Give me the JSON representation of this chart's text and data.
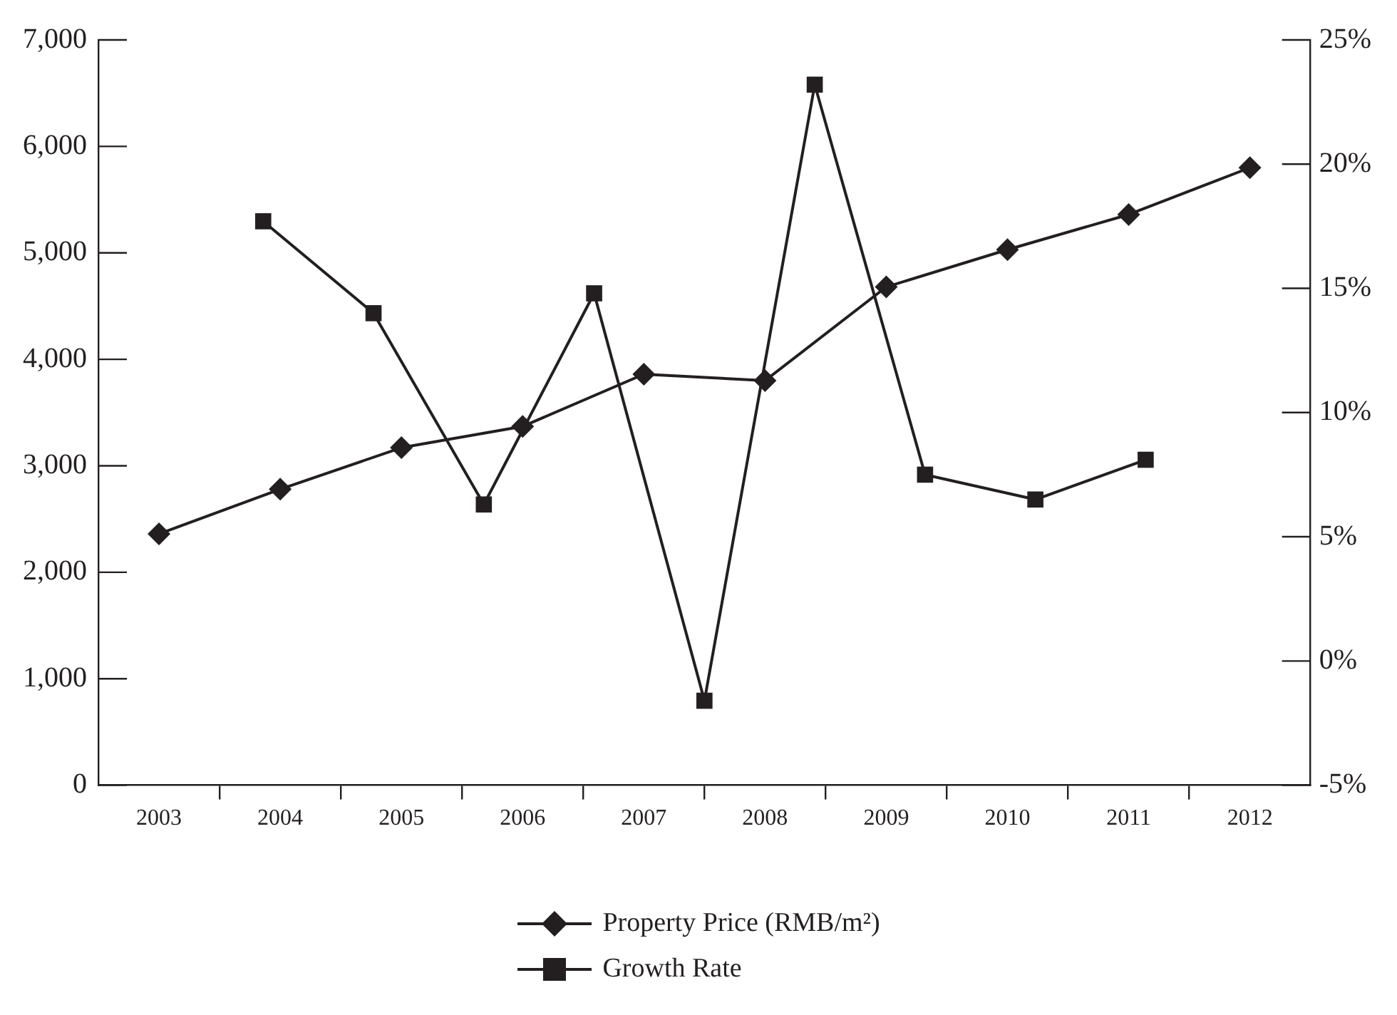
{
  "chart_data": {
    "type": "line",
    "x": [
      2003,
      2004,
      2005,
      2006,
      2007,
      2008,
      2009,
      2010,
      2011,
      2012
    ],
    "xlim": [
      2002.5,
      2012.5
    ],
    "xticks": [
      2003,
      2004,
      2005,
      2006,
      2007,
      2008,
      2009,
      2010,
      2011,
      2012,
      {
        "value": 2003.5,
        "label": null
      },
      {
        "value": 2004.5,
        "label": null
      },
      {
        "value": 2005.5,
        "label": null
      },
      {
        "value": 2006.5,
        "label": null
      },
      {
        "value": 2007.5,
        "label": null
      },
      {
        "value": 2008.5,
        "label": null
      },
      {
        "value": 2009.5,
        "label": null
      },
      {
        "value": 2010.5,
        "label": null
      },
      {
        "value": 2011.5,
        "label": null
      }
    ],
    "ylim": [
      0,
      7000
    ],
    "yticks": [
      {
        "value": 0,
        "label": "0"
      },
      {
        "value": 1000,
        "label": "1,000"
      },
      {
        "value": 2000,
        "label": "2,000"
      },
      {
        "value": 3000,
        "label": "3,000"
      },
      {
        "value": 4000,
        "label": "4,000"
      },
      {
        "value": 5000,
        "label": "5,000"
      },
      {
        "value": 6000,
        "label": "6,000"
      },
      {
        "value": 7000,
        "label": "7,000"
      }
    ],
    "y2lim": [
      -5,
      25
    ],
    "y2ticks": [
      {
        "value": -5,
        "label": "-5%"
      },
      {
        "value": 0,
        "label": "0%"
      },
      {
        "value": 5,
        "label": "5%"
      },
      {
        "value": 10,
        "label": "10%"
      },
      {
        "value": 15,
        "label": "15%"
      },
      {
        "value": 20,
        "label": "20%"
      },
      {
        "value": 25,
        "label": "25%"
      }
    ],
    "legend": "bottom",
    "line_style": "solid",
    "series": [
      {
        "name": "Property Price (RMB/m²)",
        "color": "#231f20",
        "marker": "diamond",
        "values": [
          2360,
          2780,
          3170,
          3370,
          3860,
          3800,
          4680,
          5030,
          5360,
          5800
        ]
      },
      {
        "name": "Growth Rate",
        "color": "#231f20",
        "marker": "square",
        "axis": "y2",
        "x": [
          2003.86,
          2004.77,
          2005.68,
          2006.59,
          2007.5,
          2008.41,
          2009.32,
          2010.23,
          2011.14
        ],
        "values": [
          17.7,
          14.0,
          6.3,
          14.8,
          -1.6,
          23.2,
          7.5,
          6.5,
          8.1
        ]
      }
    ]
  }
}
